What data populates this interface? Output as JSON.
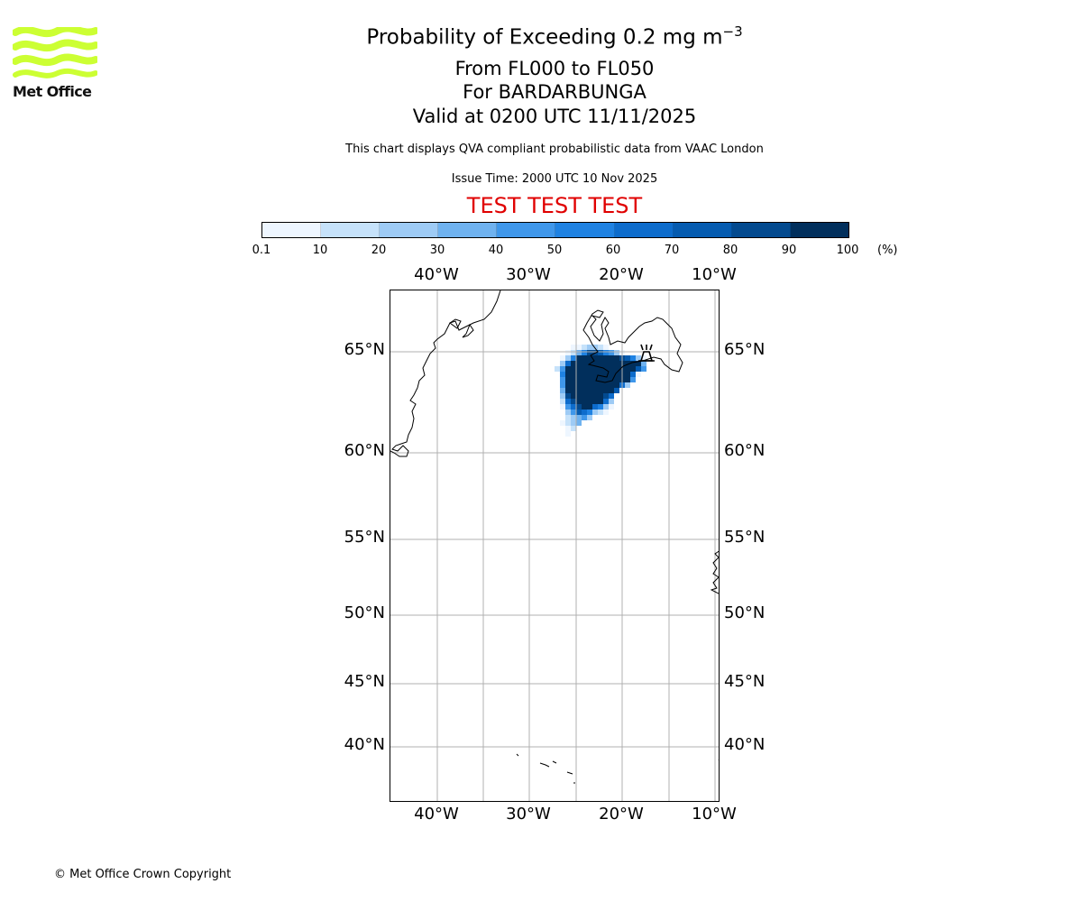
{
  "branding": {
    "logo_text": "Met Office",
    "logo_color": "#ccff33"
  },
  "title": {
    "main": "Probability of Exceeding 0.2 mg m",
    "main_sup": "−3",
    "levels": "From FL000 to FL050",
    "volcano": "For BARDARBUNGA",
    "valid": "Valid at 0200 UTC 11/11/2025"
  },
  "subtitle": "This chart displays QVA compliant probabilistic data from VAAC London",
  "issue_time": "Issue Time: 2000 UTC 10 Nov 2025",
  "test_banner": "TEST TEST TEST",
  "test_color": "#e00000",
  "colorbar": {
    "ticks": [
      "0.1",
      "10",
      "20",
      "30",
      "40",
      "50",
      "60",
      "70",
      "80",
      "90",
      "100"
    ],
    "unit": "(%)",
    "colors": [
      "#eef6ff",
      "#c6e2fa",
      "#9ecbf5",
      "#6fb2ef",
      "#3f97ea",
      "#1f82e2",
      "#0d6ccc",
      "#055bb0",
      "#034a8f",
      "#012f5c"
    ]
  },
  "map": {
    "lon_labels": [
      "40°W",
      "30°W",
      "20°W",
      "10°W"
    ],
    "lat_labels": [
      "65°N",
      "60°N",
      "55°N",
      "50°N",
      "45°N",
      "40°N"
    ],
    "volcano_marker": "volcano-icon",
    "ash_max_probability_percent": 100
  },
  "copyright": "© Met Office Crown Copyright"
}
